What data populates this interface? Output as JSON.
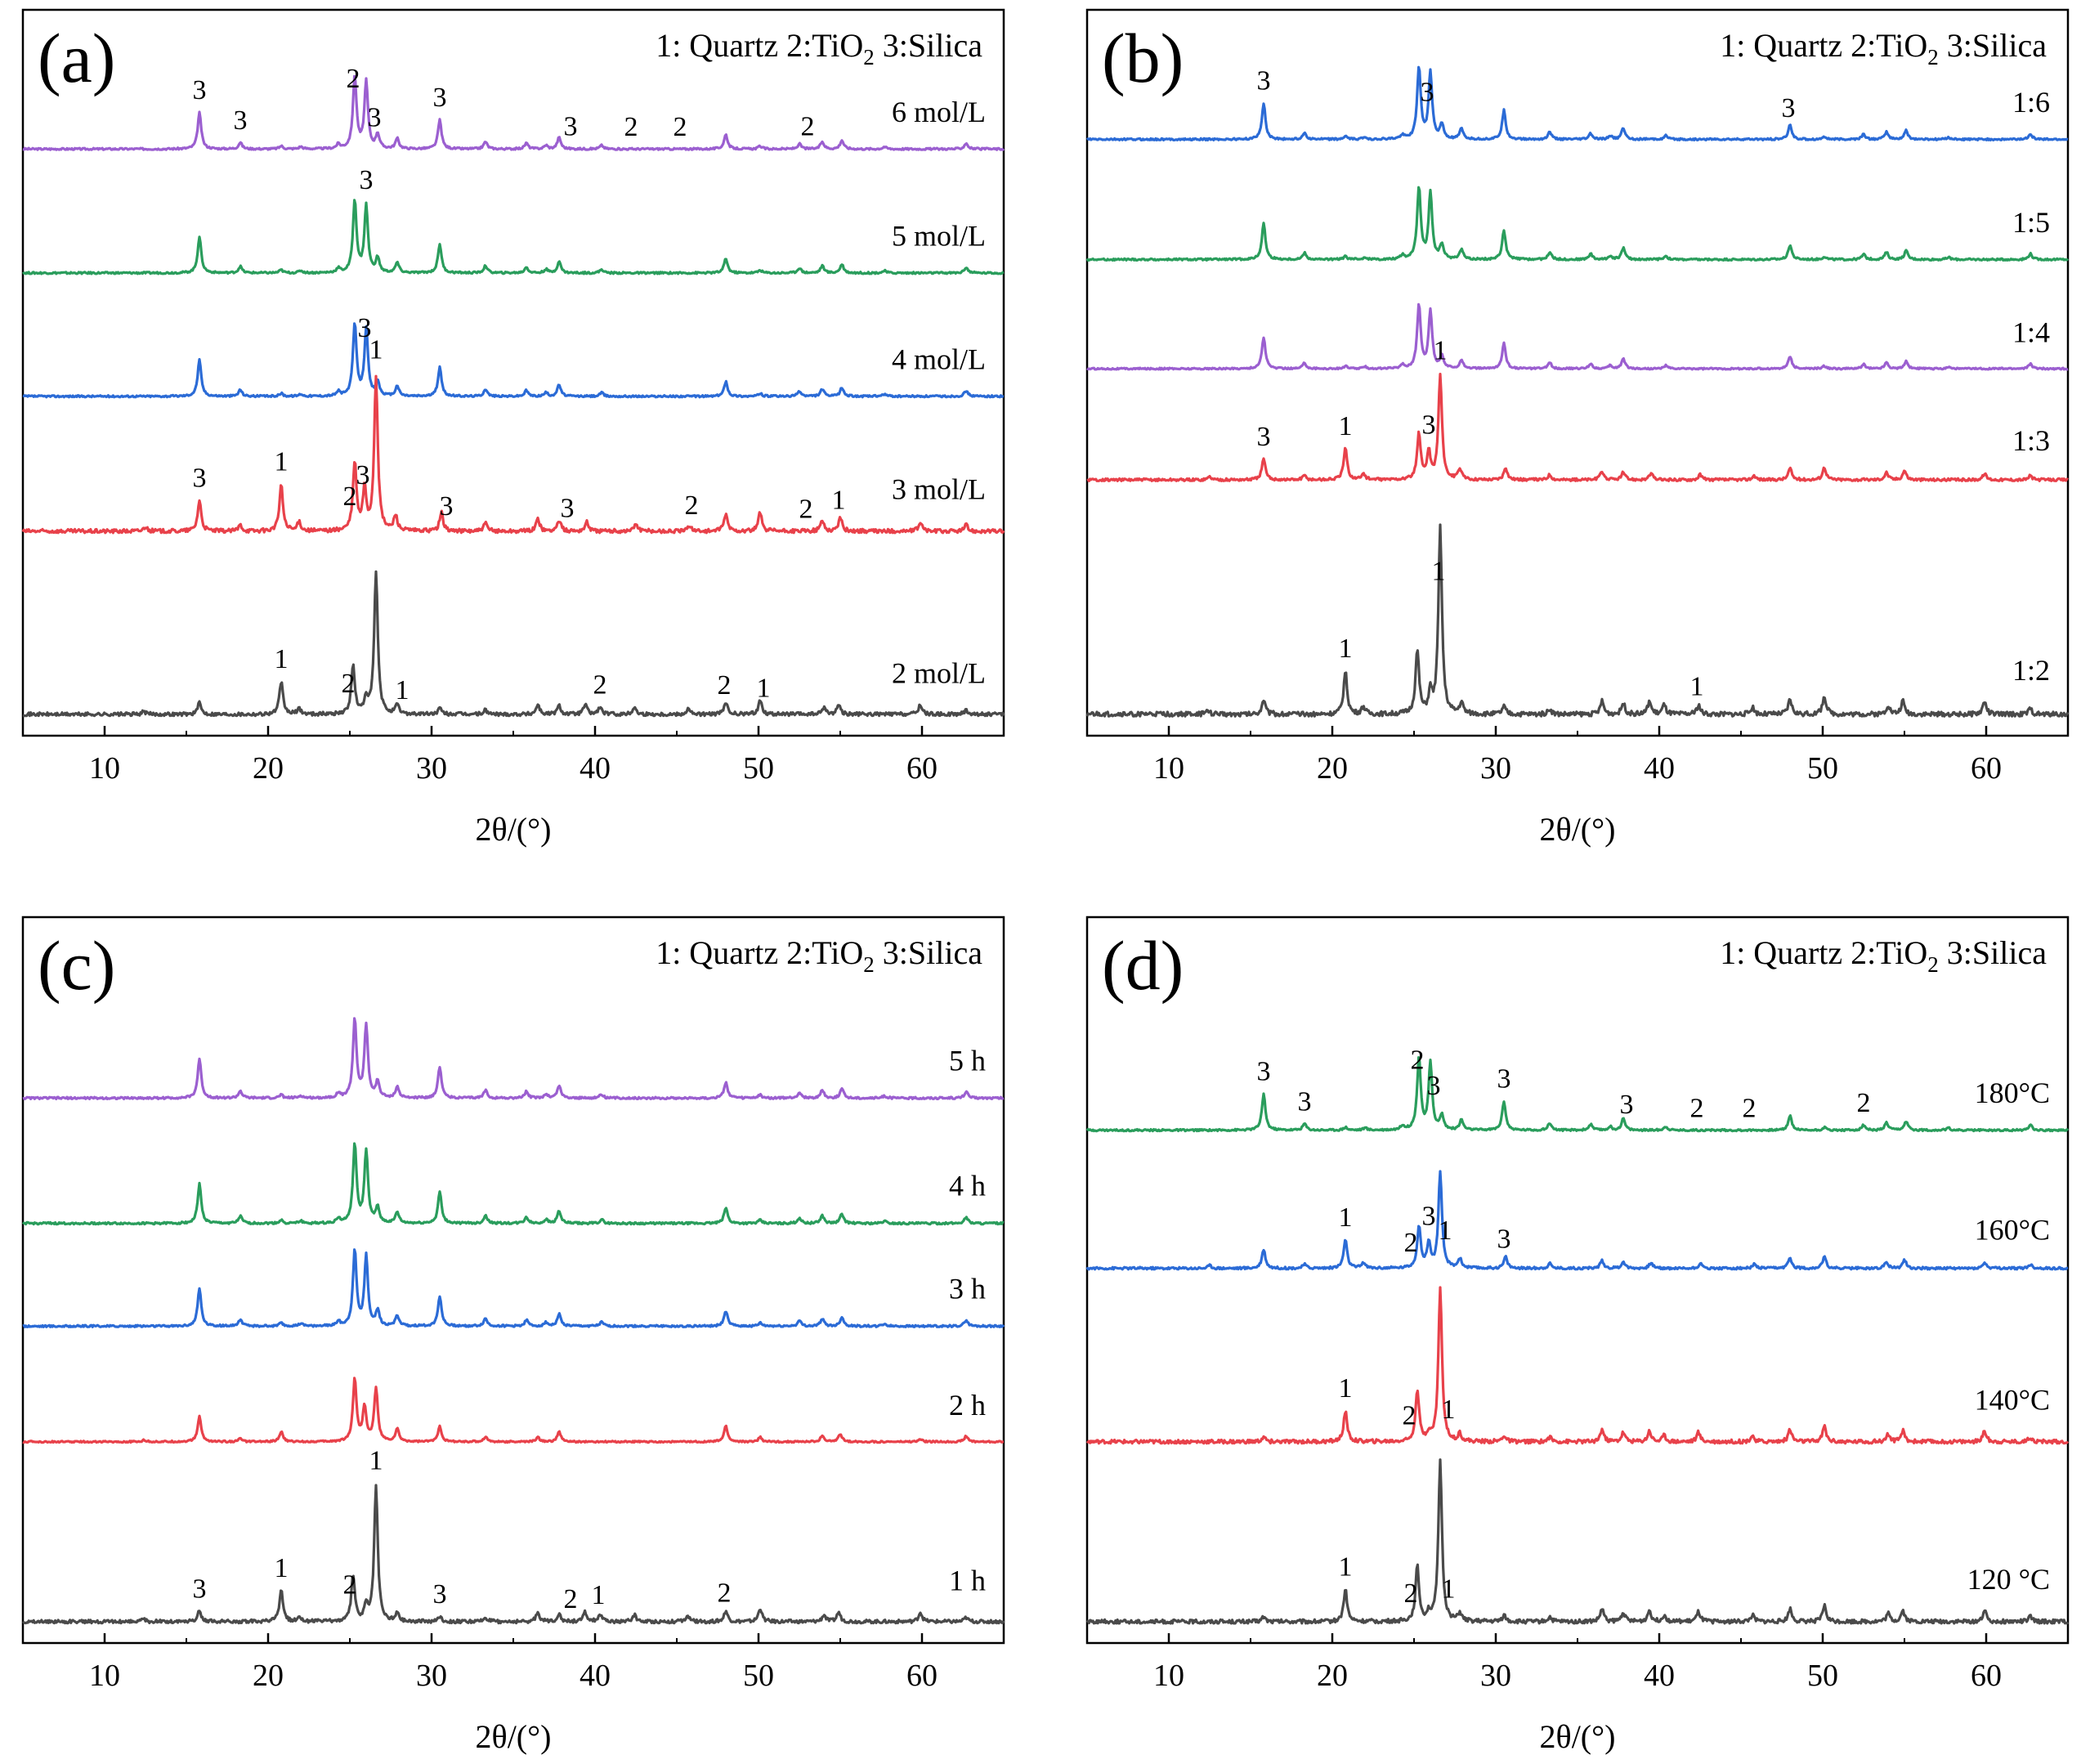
{
  "figure": {
    "legend_prefix": [
      "1: Quartz",
      "2:TiO",
      "3:Silica"
    ],
    "legend_subscript": "2"
  },
  "chart_data": [
    {
      "id": "a",
      "panel_label": "(a)",
      "type": "line",
      "xlabel": "2θ/(°)",
      "ylabel": "",
      "xlim": [
        5,
        65
      ],
      "xticks": [
        10,
        20,
        30,
        40,
        50,
        60
      ],
      "xtick_labels": [
        "10",
        "20",
        "30",
        "40",
        "50",
        "60"
      ],
      "legend": {
        "items": [
          "1: Quartz",
          "2:TiO2",
          "3:Silica"
        ]
      },
      "series": [
        {
          "name": "6 mol/L",
          "color": "#9b5fd0",
          "profile": "silica",
          "offset": 0.885,
          "scale": 0.115,
          "peak_labels": [
            {
              "x": 15.8,
              "text": "3"
            },
            {
              "x": 18.3,
              "text": "3"
            },
            {
              "x": 25.2,
              "text": "2"
            },
            {
              "x": 26.5,
              "text": "3"
            },
            {
              "x": 30.5,
              "text": "3"
            },
            {
              "x": 38.5,
              "text": "3"
            },
            {
              "x": 42.2,
              "text": "2"
            },
            {
              "x": 45.2,
              "text": "2"
            },
            {
              "x": 53.0,
              "text": "2"
            }
          ]
        },
        {
          "name": "5 mol/L",
          "color": "#2a9d5c",
          "profile": "silica",
          "offset": 0.692,
          "scale": 0.115,
          "peak_labels": [
            {
              "x": 26.0,
              "text": "3"
            }
          ]
        },
        {
          "name": "4 mol/L",
          "color": "#2b6bd6",
          "profile": "silica",
          "offset": 0.5,
          "scale": 0.115,
          "peak_labels": [
            {
              "x": 25.9,
              "text": "3"
            }
          ]
        },
        {
          "name": "3 mol/L",
          "color": "#e8414a",
          "profile": "mixed",
          "offset": 0.29,
          "scale": 0.245,
          "peak_labels": [
            {
              "x": 15.8,
              "text": "3"
            },
            {
              "x": 20.8,
              "text": "1"
            },
            {
              "x": 25.0,
              "text": "2"
            },
            {
              "x": 25.8,
              "text": "3"
            },
            {
              "x": 26.6,
              "text": "1"
            },
            {
              "x": 30.9,
              "text": "3"
            },
            {
              "x": 38.3,
              "text": "3"
            },
            {
              "x": 45.9,
              "text": "2"
            },
            {
              "x": 52.9,
              "text": "2"
            },
            {
              "x": 54.9,
              "text": "1"
            }
          ]
        },
        {
          "name": "2 mol/L",
          "color": "#4a4a4a",
          "profile": "quartz",
          "offset": 0.005,
          "scale": 0.225,
          "peak_labels": [
            {
              "x": 20.8,
              "text": "1"
            },
            {
              "x": 24.9,
              "text": "2"
            },
            {
              "x": 28.2,
              "text": "1"
            },
            {
              "x": 40.3,
              "text": "2"
            },
            {
              "x": 47.9,
              "text": "2"
            },
            {
              "x": 50.3,
              "text": "1"
            }
          ]
        }
      ]
    },
    {
      "id": "b",
      "panel_label": "(b)",
      "type": "line",
      "xlabel": "2θ/(°)",
      "ylabel": "",
      "xlim": [
        5,
        65
      ],
      "xticks": [
        10,
        20,
        30,
        40,
        50,
        60
      ],
      "xtick_labels": [
        "10",
        "20",
        "30",
        "40",
        "50",
        "60"
      ],
      "legend": {
        "items": [
          "1: Quartz",
          "2:TiO2",
          "3:Silica"
        ]
      },
      "series": [
        {
          "name": "1:6",
          "color": "#2b6bd6",
          "profile": "silica",
          "offset": 0.9,
          "scale": 0.115,
          "peak_labels": [
            {
              "x": 15.8,
              "text": "3"
            },
            {
              "x": 25.8,
              "text": "3"
            },
            {
              "x": 47.9,
              "text": "3"
            }
          ]
        },
        {
          "name": "1:5",
          "color": "#2a9d5c",
          "profile": "silica",
          "offset": 0.713,
          "scale": 0.115,
          "peak_labels": []
        },
        {
          "name": "1:4",
          "color": "#9b5fd0",
          "profile": "silica",
          "offset": 0.543,
          "scale": 0.1,
          "peak_labels": []
        },
        {
          "name": "1:3",
          "color": "#e8414a",
          "profile": "mixed",
          "offset": 0.37,
          "scale": 0.165,
          "peak_labels": [
            {
              "x": 15.8,
              "text": "3"
            },
            {
              "x": 20.8,
              "text": "1"
            },
            {
              "x": 25.9,
              "text": "3"
            },
            {
              "x": 26.6,
              "text": "1"
            }
          ]
        },
        {
          "name": "1:2",
          "color": "#4a4a4a",
          "profile": "quartz",
          "offset": 0.005,
          "scale": 0.295,
          "peak_labels": [
            {
              "x": 20.8,
              "text": "1"
            },
            {
              "x": 26.5,
              "text": "1"
            },
            {
              "x": 42.3,
              "text": "1"
            }
          ]
        }
      ]
    },
    {
      "id": "c",
      "panel_label": "(c)",
      "type": "line",
      "xlabel": "2θ/(°)",
      "ylabel": "",
      "xlim": [
        5,
        65
      ],
      "xticks": [
        10,
        20,
        30,
        40,
        50,
        60
      ],
      "xtick_labels": [
        "10",
        "20",
        "30",
        "40",
        "50",
        "60"
      ],
      "legend": {
        "items": [
          "1: Quartz",
          "2:TiO2",
          "3:Silica"
        ]
      },
      "series": [
        {
          "name": "5 h",
          "color": "#9b5fd0",
          "profile": "silica",
          "offset": 0.82,
          "scale": 0.125,
          "peak_labels": []
        },
        {
          "name": "4 h",
          "color": "#2a9d5c",
          "profile": "silica",
          "offset": 0.625,
          "scale": 0.125,
          "peak_labels": []
        },
        {
          "name": "3 h",
          "color": "#2b6bd6",
          "profile": "silica",
          "offset": 0.465,
          "scale": 0.12,
          "peak_labels": []
        },
        {
          "name": "2 h",
          "color": "#e8414a",
          "profile": "mixed2h",
          "offset": 0.285,
          "scale": 0.1,
          "peak_labels": []
        },
        {
          "name": "1 h",
          "color": "#4a4a4a",
          "profile": "quartz",
          "offset": 0.005,
          "scale": 0.215,
          "peak_labels": [
            {
              "x": 15.8,
              "text": "3"
            },
            {
              "x": 20.8,
              "text": "1"
            },
            {
              "x": 25.0,
              "text": "2"
            },
            {
              "x": 26.6,
              "text": "1"
            },
            {
              "x": 30.5,
              "text": "3"
            },
            {
              "x": 38.5,
              "text": "2"
            },
            {
              "x": 40.2,
              "text": "1"
            },
            {
              "x": 47.9,
              "text": "2"
            },
            {
              "x": 60.3,
              "text": "1 h"
            }
          ]
        }
      ]
    },
    {
      "id": "d",
      "panel_label": "(d)",
      "type": "line",
      "xlabel": "2θ/(°)",
      "ylabel": "",
      "xlim": [
        5,
        65
      ],
      "xticks": [
        10,
        20,
        30,
        40,
        50,
        60
      ],
      "xtick_labels": [
        "10",
        "20",
        "30",
        "40",
        "50",
        "60"
      ],
      "legend": {
        "items": [
          "1: Quartz",
          "2:TiO2",
          "3:Silica"
        ]
      },
      "series": [
        {
          "name": "180°C",
          "color": "#2a9d5c",
          "profile": "silica",
          "offset": 0.77,
          "scale": 0.115,
          "peak_labels": [
            {
              "x": 15.8,
              "text": "3"
            },
            {
              "x": 18.3,
              "text": "3"
            },
            {
              "x": 25.2,
              "text": "2"
            },
            {
              "x": 26.2,
              "text": "3"
            },
            {
              "x": 30.5,
              "text": "3"
            },
            {
              "x": 38.0,
              "text": "3"
            },
            {
              "x": 42.3,
              "text": "2"
            },
            {
              "x": 45.5,
              "text": "2"
            },
            {
              "x": 52.5,
              "text": "2"
            }
          ]
        },
        {
          "name": "160°C",
          "color": "#2b6bd6",
          "profile": "mixed",
          "offset": 0.555,
          "scale": 0.15,
          "peak_labels": [
            {
              "x": 20.8,
              "text": "1"
            },
            {
              "x": 24.8,
              "text": "2"
            },
            {
              "x": 25.9,
              "text": "3"
            },
            {
              "x": 26.9,
              "text": "1"
            },
            {
              "x": 30.5,
              "text": "3"
            }
          ]
        },
        {
          "name": "140°C",
          "color": "#e8414a",
          "profile": "quartzT",
          "offset": 0.285,
          "scale": 0.245,
          "peak_labels": [
            {
              "x": 20.8,
              "text": "1"
            },
            {
              "x": 24.7,
              "text": "2"
            },
            {
              "x": 27.1,
              "text": "1"
            }
          ]
        },
        {
          "name": "120 °C",
          "color": "#4a4a4a",
          "profile": "quartzT",
          "offset": 0.005,
          "scale": 0.255,
          "peak_labels": [
            {
              "x": 20.8,
              "text": "1"
            },
            {
              "x": 24.8,
              "text": "2"
            },
            {
              "x": 27.1,
              "text": "1"
            }
          ]
        }
      ]
    }
  ]
}
